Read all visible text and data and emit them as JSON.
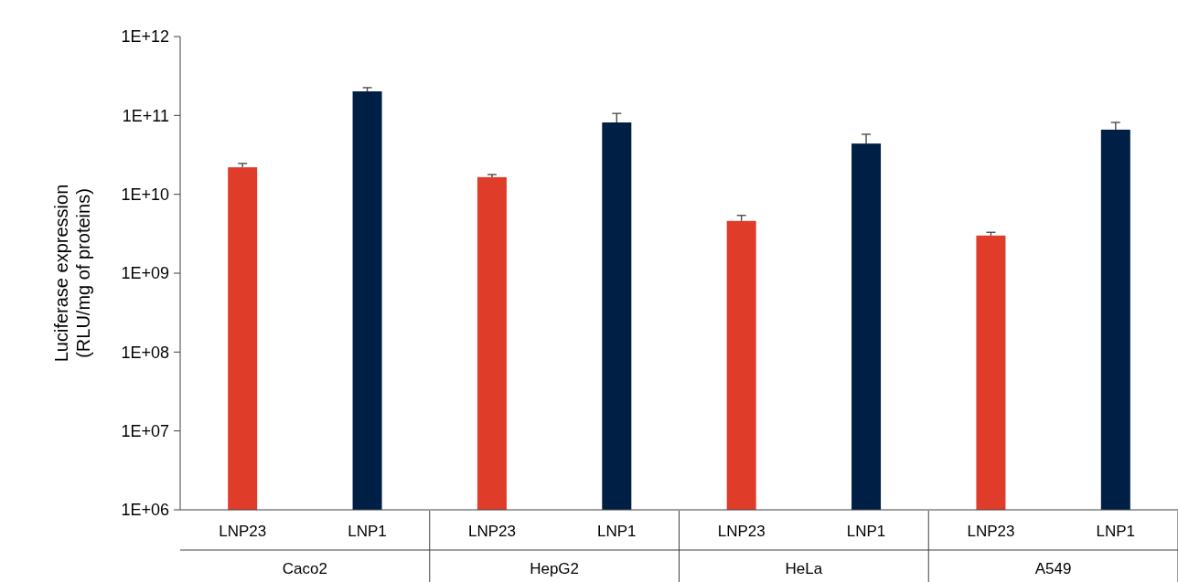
{
  "chart_data": {
    "type": "bar",
    "ylabel": "Luciferase expression\n(RLU/mg of proteins)",
    "categories": [
      "Caco2",
      "HepG2",
      "HeLa",
      "A549"
    ],
    "log": true,
    "ylim": [
      1000000,
      1000000000000
    ],
    "yticks": [
      {
        "value": 1000000,
        "label": "1E+06"
      },
      {
        "value": 10000000,
        "label": "1E+07"
      },
      {
        "value": 100000000,
        "label": "1E+08"
      },
      {
        "value": 1000000000,
        "label": "1E+09"
      },
      {
        "value": 10000000000,
        "label": "1E+10"
      },
      {
        "value": 100000000000,
        "label": "1E+11"
      },
      {
        "value": 1000000000000,
        "label": "1E+12"
      }
    ],
    "grid": false,
    "series": [
      {
        "name": "LNP23",
        "color": "#e03c2a",
        "values": [
          22000000000,
          16500000000,
          4600000000,
          3000000000
        ],
        "errors": [
          [
            22000000000,
            24600000000
          ],
          [
            16500000000,
            17800000000
          ],
          [
            4600000000,
            5400000000
          ],
          [
            3000000000,
            3300000000
          ]
        ]
      },
      {
        "name": "LNP1",
        "color": "#001f45",
        "values": [
          202000000000,
          81500000000,
          44000000000,
          66000000000
        ],
        "errors": [
          [
            202000000000,
            225000000000
          ],
          [
            81500000000,
            106000000000
          ],
          [
            44000000000,
            57700000000
          ],
          [
            66000000000,
            81500000000
          ]
        ]
      }
    ]
  }
}
